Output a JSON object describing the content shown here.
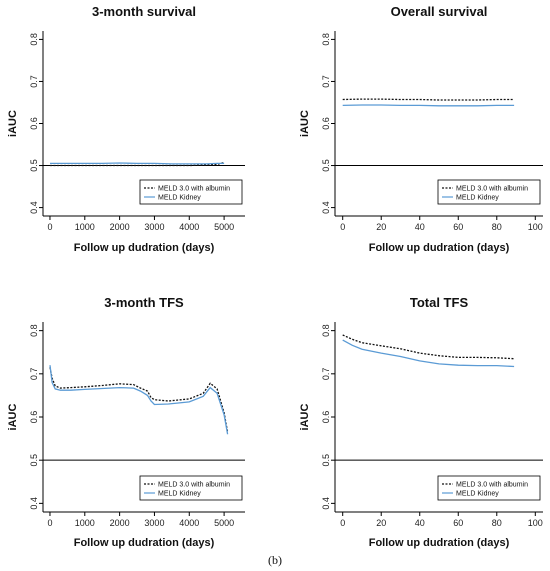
{
  "caption": "(b)",
  "colors": {
    "meld30": "#111111",
    "kidney": "#5b9bd5",
    "axis": "#000000"
  },
  "chart_data": [
    {
      "type": "line",
      "title": "3-month survival",
      "xlabel": "Follow up dudration (days)",
      "ylabel": "iAUC",
      "xlim": [
        -200,
        5600
      ],
      "ylim": [
        0.38,
        0.82
      ],
      "xticks": [
        0,
        1000,
        2000,
        3000,
        4000,
        5000
      ],
      "yticks": [
        0.4,
        0.5,
        0.6,
        0.7,
        0.8
      ],
      "reference_line": 0.5,
      "legend": "bottom-right",
      "series": [
        {
          "name": "MELD 3.0 with albumin",
          "style": "dotted",
          "color": "#111111",
          "x": [
            0,
            500,
            1000,
            1500,
            2000,
            2500,
            3000,
            3500,
            4000,
            4500,
            4800,
            5000
          ],
          "y": [
            0.5,
            0.5,
            0.5,
            0.5,
            0.5,
            0.5,
            0.5,
            0.5,
            0.5,
            0.501,
            0.503,
            0.507
          ]
        },
        {
          "name": "MELD Kidney",
          "style": "solid",
          "color": "#5b9bd5",
          "x": [
            0,
            500,
            1000,
            1500,
            2000,
            2500,
            3000,
            3500,
            4000,
            4500,
            4800,
            5000
          ],
          "y": [
            0.505,
            0.505,
            0.505,
            0.505,
            0.506,
            0.505,
            0.505,
            0.504,
            0.504,
            0.504,
            0.505,
            0.505
          ]
        }
      ]
    },
    {
      "type": "line",
      "title": "Overall survival",
      "xlabel": "Follow up dudration (days)",
      "ylabel": "iAUC",
      "xlim": [
        -4,
        104
      ],
      "ylim": [
        0.38,
        0.82
      ],
      "xticks": [
        0,
        20,
        40,
        60,
        80,
        100
      ],
      "yticks": [
        0.4,
        0.5,
        0.6,
        0.7,
        0.8
      ],
      "reference_line": 0.5,
      "legend": "bottom-right",
      "series": [
        {
          "name": "MELD 3.0 with albumin",
          "style": "dotted",
          "color": "#111111",
          "x": [
            0,
            10,
            20,
            30,
            40,
            50,
            60,
            70,
            80,
            89
          ],
          "y": [
            0.657,
            0.658,
            0.658,
            0.657,
            0.657,
            0.656,
            0.656,
            0.656,
            0.657,
            0.657
          ]
        },
        {
          "name": "MELD Kidney",
          "style": "solid",
          "color": "#5b9bd5",
          "x": [
            0,
            10,
            20,
            30,
            40,
            50,
            60,
            70,
            80,
            89
          ],
          "y": [
            0.643,
            0.644,
            0.644,
            0.643,
            0.643,
            0.642,
            0.642,
            0.642,
            0.643,
            0.643
          ]
        }
      ]
    },
    {
      "type": "line",
      "title": "3-month TFS",
      "xlabel": "Follow up dudration (days)",
      "ylabel": "iAUC",
      "xlim": [
        -200,
        5600
      ],
      "ylim": [
        0.38,
        0.82
      ],
      "xticks": [
        0,
        1000,
        2000,
        3000,
        4000,
        5000
      ],
      "yticks": [
        0.4,
        0.5,
        0.6,
        0.7,
        0.8
      ],
      "reference_line": 0.5,
      "legend": "bottom-right",
      "series": [
        {
          "name": "MELD 3.0 with albumin",
          "style": "dotted",
          "color": "#111111",
          "x": [
            0,
            60,
            150,
            300,
            600,
            1000,
            1500,
            2000,
            2400,
            2600,
            2800,
            2900,
            3000,
            3400,
            4000,
            4400,
            4600,
            4800,
            5000,
            5100
          ],
          "y": [
            0.715,
            0.69,
            0.672,
            0.667,
            0.668,
            0.67,
            0.673,
            0.677,
            0.675,
            0.667,
            0.66,
            0.645,
            0.64,
            0.637,
            0.642,
            0.655,
            0.678,
            0.665,
            0.61,
            0.565
          ]
        },
        {
          "name": "MELD Kidney",
          "style": "solid",
          "color": "#5b9bd5",
          "x": [
            0,
            60,
            150,
            300,
            600,
            1000,
            1500,
            2000,
            2400,
            2600,
            2800,
            2900,
            3000,
            3400,
            4000,
            4400,
            4600,
            4800,
            5000,
            5100
          ],
          "y": [
            0.72,
            0.68,
            0.665,
            0.662,
            0.662,
            0.664,
            0.666,
            0.668,
            0.667,
            0.66,
            0.65,
            0.637,
            0.629,
            0.63,
            0.635,
            0.648,
            0.668,
            0.655,
            0.605,
            0.56
          ]
        }
      ]
    },
    {
      "type": "line",
      "title": "Total TFS",
      "xlabel": "Follow up dudration (days)",
      "ylabel": "iAUC",
      "xlim": [
        -4,
        104
      ],
      "ylim": [
        0.38,
        0.82
      ],
      "xticks": [
        0,
        20,
        40,
        60,
        80,
        100
      ],
      "yticks": [
        0.4,
        0.5,
        0.6,
        0.7,
        0.8
      ],
      "reference_line": 0.5,
      "legend": "bottom-right",
      "series": [
        {
          "name": "MELD 3.0 with albumin",
          "style": "dotted",
          "color": "#111111",
          "x": [
            0,
            5,
            10,
            20,
            30,
            40,
            50,
            60,
            70,
            80,
            89
          ],
          "y": [
            0.79,
            0.78,
            0.772,
            0.765,
            0.758,
            0.748,
            0.742,
            0.738,
            0.738,
            0.737,
            0.735
          ]
        },
        {
          "name": "MELD Kidney",
          "style": "solid",
          "color": "#5b9bd5",
          "x": [
            0,
            5,
            10,
            20,
            30,
            40,
            50,
            60,
            70,
            80,
            89
          ],
          "y": [
            0.778,
            0.766,
            0.757,
            0.748,
            0.74,
            0.73,
            0.723,
            0.72,
            0.719,
            0.719,
            0.717
          ]
        }
      ]
    }
  ]
}
